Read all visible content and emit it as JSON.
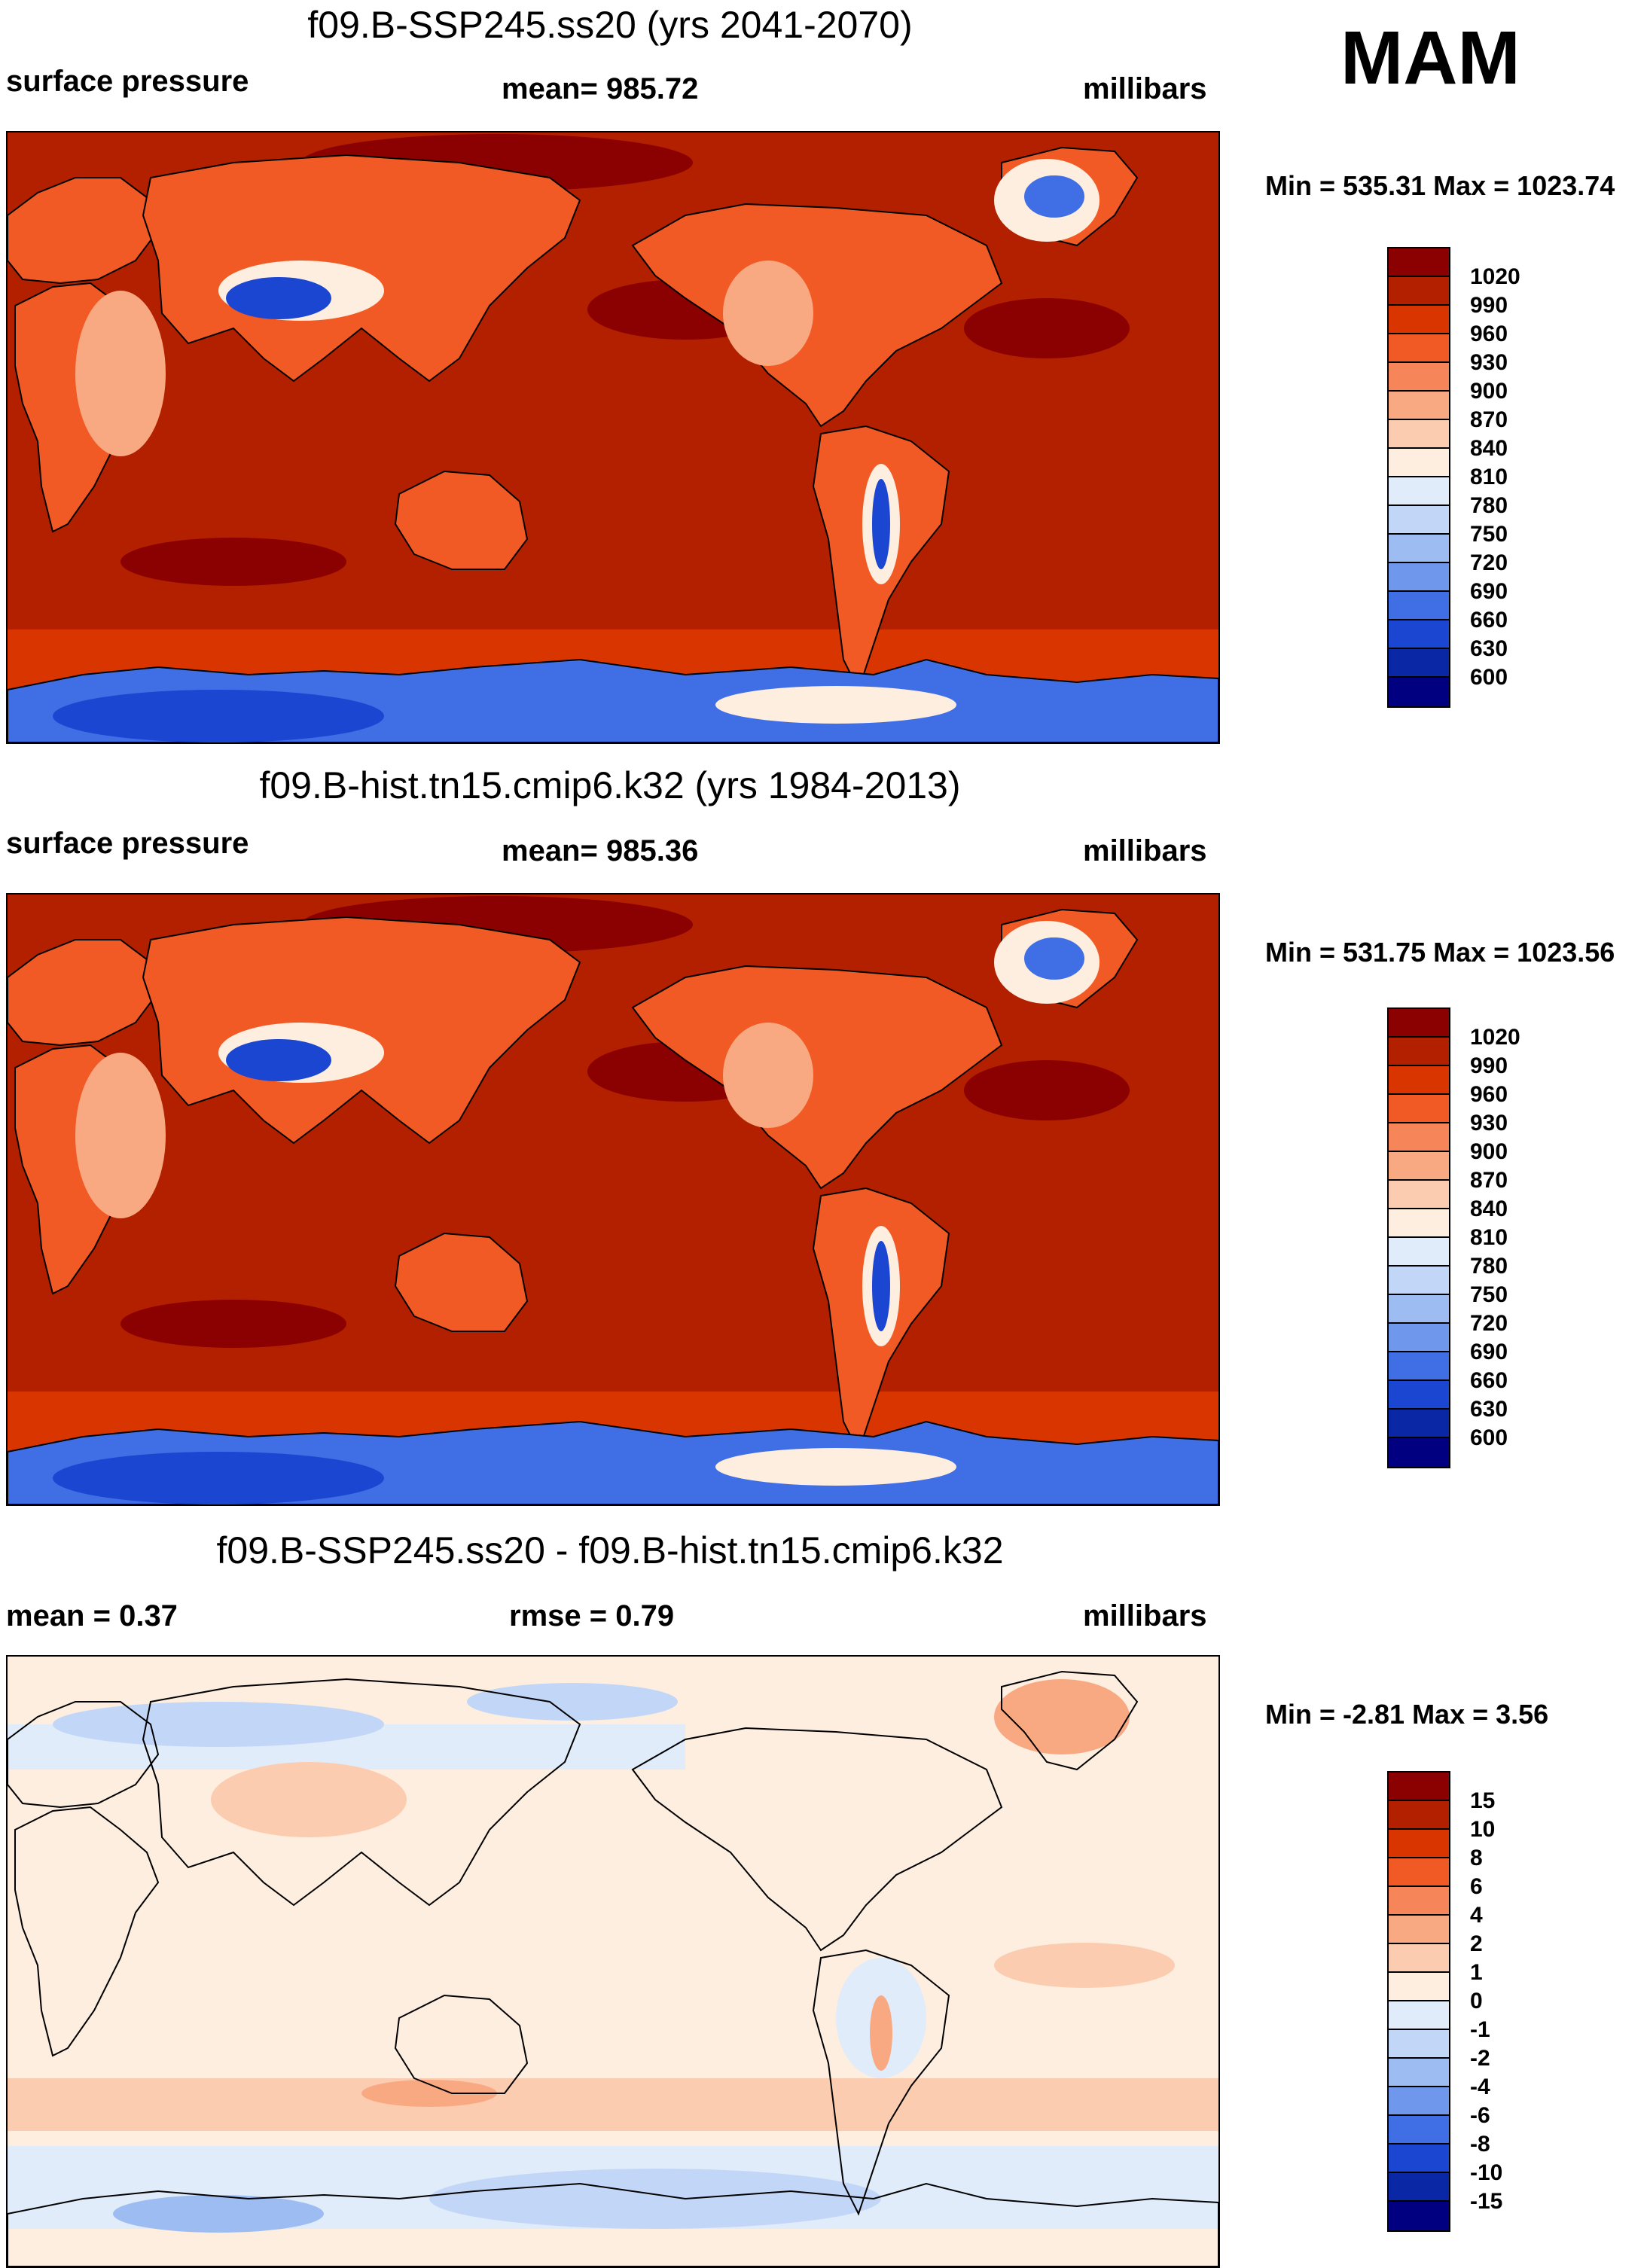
{
  "season": "MAM",
  "panels": [
    {
      "id": "future",
      "title": "f09.B-SSP245.ss20 (yrs 2041-2070)",
      "left_label": "surface pressure",
      "center_label": "mean= 985.72",
      "right_label": "millibars",
      "minmax": "Min = 535.31 Max = 1023.74"
    },
    {
      "id": "historical",
      "title": "f09.B-hist.tn15.cmip6.k32 (yrs 1984-2013)",
      "left_label": "surface pressure",
      "center_label": "mean= 985.36",
      "right_label": "millibars",
      "minmax": "Min = 531.75 Max = 1023.56"
    },
    {
      "id": "difference",
      "title": "f09.B-SSP245.ss20 - f09.B-hist.tn15.cmip6.k32",
      "left_label": "mean =   0.37",
      "center_label": "rmse =   0.79",
      "right_label": "millibars",
      "minmax": "Min =  -2.81 Max =   3.56"
    }
  ],
  "colorbars": {
    "absolute": {
      "colors": [
        "#8b0000",
        "#b22000",
        "#d83500",
        "#f25a25",
        "#f68559",
        "#f9a982",
        "#fcccb0",
        "#fdeee0",
        "#e1ecfa",
        "#c2d7f7",
        "#9dbcf2",
        "#6f98ec",
        "#3f6ee5",
        "#1b46d1",
        "#0a28a5",
        "#000080"
      ],
      "labels": [
        "1020",
        "990",
        "960",
        "930",
        "900",
        "870",
        "840",
        "810",
        "780",
        "750",
        "720",
        "690",
        "660",
        "630",
        "600"
      ]
    },
    "difference": {
      "colors": [
        "#8b0000",
        "#b22000",
        "#d83500",
        "#f25a25",
        "#f68559",
        "#f9a982",
        "#fcccb0",
        "#fdeee0",
        "#e1ecfa",
        "#c2d7f7",
        "#9dbcf2",
        "#6f98ec",
        "#3f6ee5",
        "#1b46d1",
        "#0a28a5",
        "#000080"
      ],
      "labels": [
        "15",
        "10",
        "8",
        "6",
        "4",
        "2",
        "1",
        "0",
        "-1",
        "-2",
        "-4",
        "-6",
        "-8",
        "-10",
        "-15"
      ]
    }
  },
  "map_colors": {
    "ocean_absolute": "#b22000",
    "land_high": "#d83500",
    "land_mid": "#f25a25",
    "land_low": "#f9a982",
    "highland": "#fdeee0",
    "plateau": "#1b46d1",
    "high_pressure_cell": "#8b0000",
    "antarctic": "#3f6ee5",
    "southern_band": "#d83500",
    "diff_background": "#fdeee0",
    "diff_pos": "#fcccb0",
    "diff_pos_strong": "#f9a982",
    "diff_neg": "#e1ecfa",
    "diff_neg_strong": "#c2d7f7",
    "diff_neg_more": "#9dbcf2"
  }
}
